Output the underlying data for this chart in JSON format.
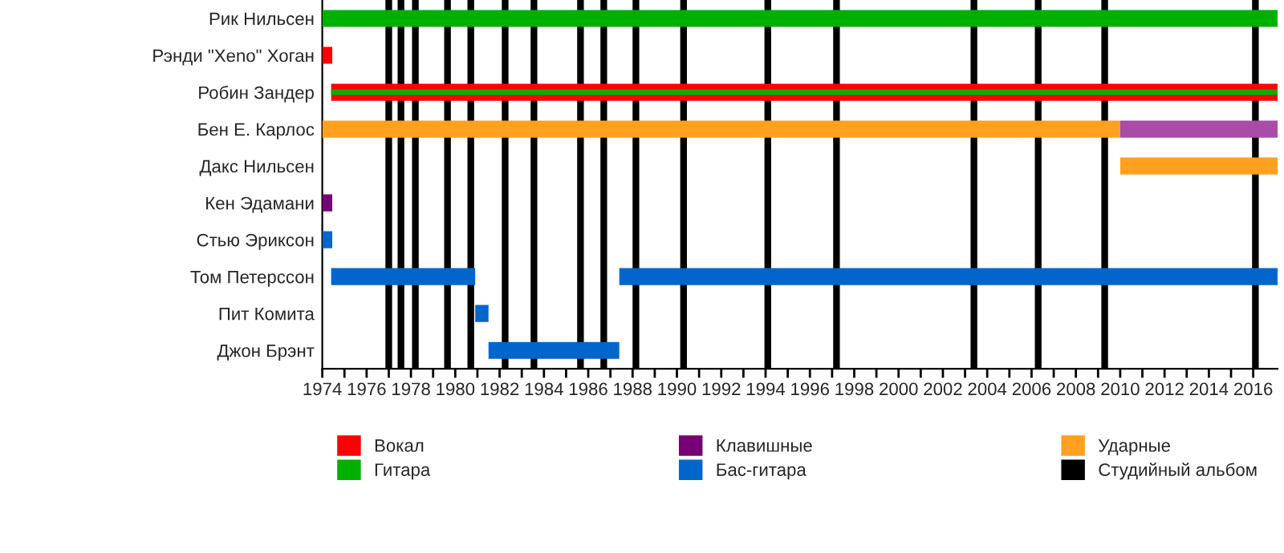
{
  "chart_data": {
    "type": "bar",
    "orientation": "horizontal",
    "stacked": false,
    "categories": [
      "Рик Нильсен",
      "Рэнди \"Xeno\" Хоган",
      "Робин Зандер",
      "Бен Е. Карлос",
      "Дакс Нильсен",
      "Кен Эдамани",
      "Стью Эриксон",
      "Том Петерссон",
      "Пит Комита",
      "Джон Брэнт"
    ],
    "series": [
      {
        "name": "Вокал",
        "color": "#ff0000",
        "base": [
          null,
          1974,
          1974.4,
          null,
          null,
          null,
          null,
          null,
          null,
          null
        ],
        "values": [
          null,
          0.45,
          42.7,
          null,
          null,
          null,
          null,
          null,
          null,
          null
        ]
      },
      {
        "name": "Гитара",
        "color": "#00b000",
        "base": [
          1974,
          null,
          1974.4,
          null,
          null,
          null,
          null,
          null,
          null,
          null
        ],
        "values": [
          43.1,
          null,
          42.7,
          null,
          null,
          null,
          null,
          null,
          null,
          null
        ]
      },
      {
        "name": "Клавишные",
        "color": "#770077",
        "base": [
          null,
          null,
          null,
          null,
          null,
          1974,
          null,
          null,
          null,
          null
        ],
        "values": [
          null,
          null,
          null,
          null,
          null,
          0.45,
          null,
          null,
          null,
          null
        ]
      },
      {
        "name": "Бас-гитара",
        "color": "#0066cc",
        "base": [
          null,
          null,
          null,
          null,
          null,
          null,
          1974,
          1974.4,
          1980.9,
          1981.5
        ],
        "values": [
          null,
          null,
          null,
          null,
          null,
          null,
          0.45,
          6.5,
          0.6,
          5.9
        ]
      },
      {
        "name": "Ударные",
        "color": "#ffa020",
        "base": [
          null,
          null,
          null,
          1974,
          2010,
          null,
          null,
          null,
          null,
          null
        ],
        "values": [
          null,
          null,
          null,
          36,
          7.1,
          null,
          null,
          null,
          null,
          null
        ]
      },
      {
        "color": "#a84ca8",
        "base": [
          null,
          null,
          null,
          2010,
          null,
          null,
          null,
          null,
          null,
          null
        ],
        "values": [
          null,
          null,
          null,
          7.1,
          null,
          null,
          null,
          null,
          null,
          null
        ]
      },
      {
        "color": "#0066cc",
        "base": [
          null,
          null,
          null,
          null,
          null,
          null,
          null,
          1987.4,
          null,
          null
        ],
        "values": [
          null,
          null,
          null,
          null,
          null,
          null,
          null,
          29.7,
          null,
          null
        ]
      }
    ],
    "ref_lines": [
      {
        "axis": "x",
        "value": 1977.0,
        "label": "Студийный альбом",
        "color": "#000000"
      },
      {
        "axis": "x",
        "value": 1977.55,
        "color": "#000000"
      },
      {
        "axis": "x",
        "value": 1978.2,
        "color": "#000000"
      },
      {
        "axis": "x",
        "value": 1979.65,
        "color": "#000000"
      },
      {
        "axis": "x",
        "value": 1980.7,
        "color": "#000000"
      },
      {
        "axis": "x",
        "value": 1982.25,
        "color": "#000000"
      },
      {
        "axis": "x",
        "value": 1983.55,
        "color": "#000000"
      },
      {
        "axis": "x",
        "value": 1985.65,
        "color": "#000000"
      },
      {
        "axis": "x",
        "value": 1986.7,
        "color": "#000000"
      },
      {
        "axis": "x",
        "value": 1988.15,
        "color": "#000000"
      },
      {
        "axis": "x",
        "value": 1990.3,
        "color": "#000000"
      },
      {
        "axis": "x",
        "value": 1994.1,
        "color": "#000000"
      },
      {
        "axis": "x",
        "value": 1997.2,
        "color": "#000000"
      },
      {
        "axis": "x",
        "value": 2003.4,
        "color": "#000000"
      },
      {
        "axis": "x",
        "value": 2006.3,
        "color": "#000000"
      },
      {
        "axis": "x",
        "value": 2009.3,
        "color": "#000000"
      },
      {
        "axis": "x",
        "value": 2016.1,
        "color": "#000000"
      }
    ],
    "xlim": [
      1974,
      2017.1
    ],
    "xticks": [
      1974,
      {
        "value": 1975,
        "label": null
      },
      1976,
      {
        "value": 1977,
        "label": null
      },
      1978,
      {
        "value": 1979,
        "label": null
      },
      1980,
      {
        "value": 1981,
        "label": null
      },
      1982,
      {
        "value": 1983,
        "label": null
      },
      1984,
      {
        "value": 1985,
        "label": null
      },
      1986,
      {
        "value": 1987,
        "label": null
      },
      1988,
      {
        "value": 1989,
        "label": null
      },
      1990,
      {
        "value": 1991,
        "label": null
      },
      1992,
      {
        "value": 1993,
        "label": null
      },
      1994,
      {
        "value": 1995,
        "label": null
      },
      1996,
      {
        "value": 1997,
        "label": null
      },
      1998,
      {
        "value": 1999,
        "label": null
      },
      2000,
      {
        "value": 2001,
        "label": null
      },
      2002,
      {
        "value": 2003,
        "label": null
      },
      2004,
      {
        "value": 2005,
        "label": null
      },
      2006,
      {
        "value": 2007,
        "label": null
      },
      2008,
      {
        "value": 2009,
        "label": null
      },
      2010,
      {
        "value": 2011,
        "label": null
      },
      2012,
      {
        "value": 2013,
        "label": null
      },
      2014,
      {
        "value": 2015,
        "label": null
      },
      2016
    ],
    "grid": false,
    "legend": "bottom"
  }
}
